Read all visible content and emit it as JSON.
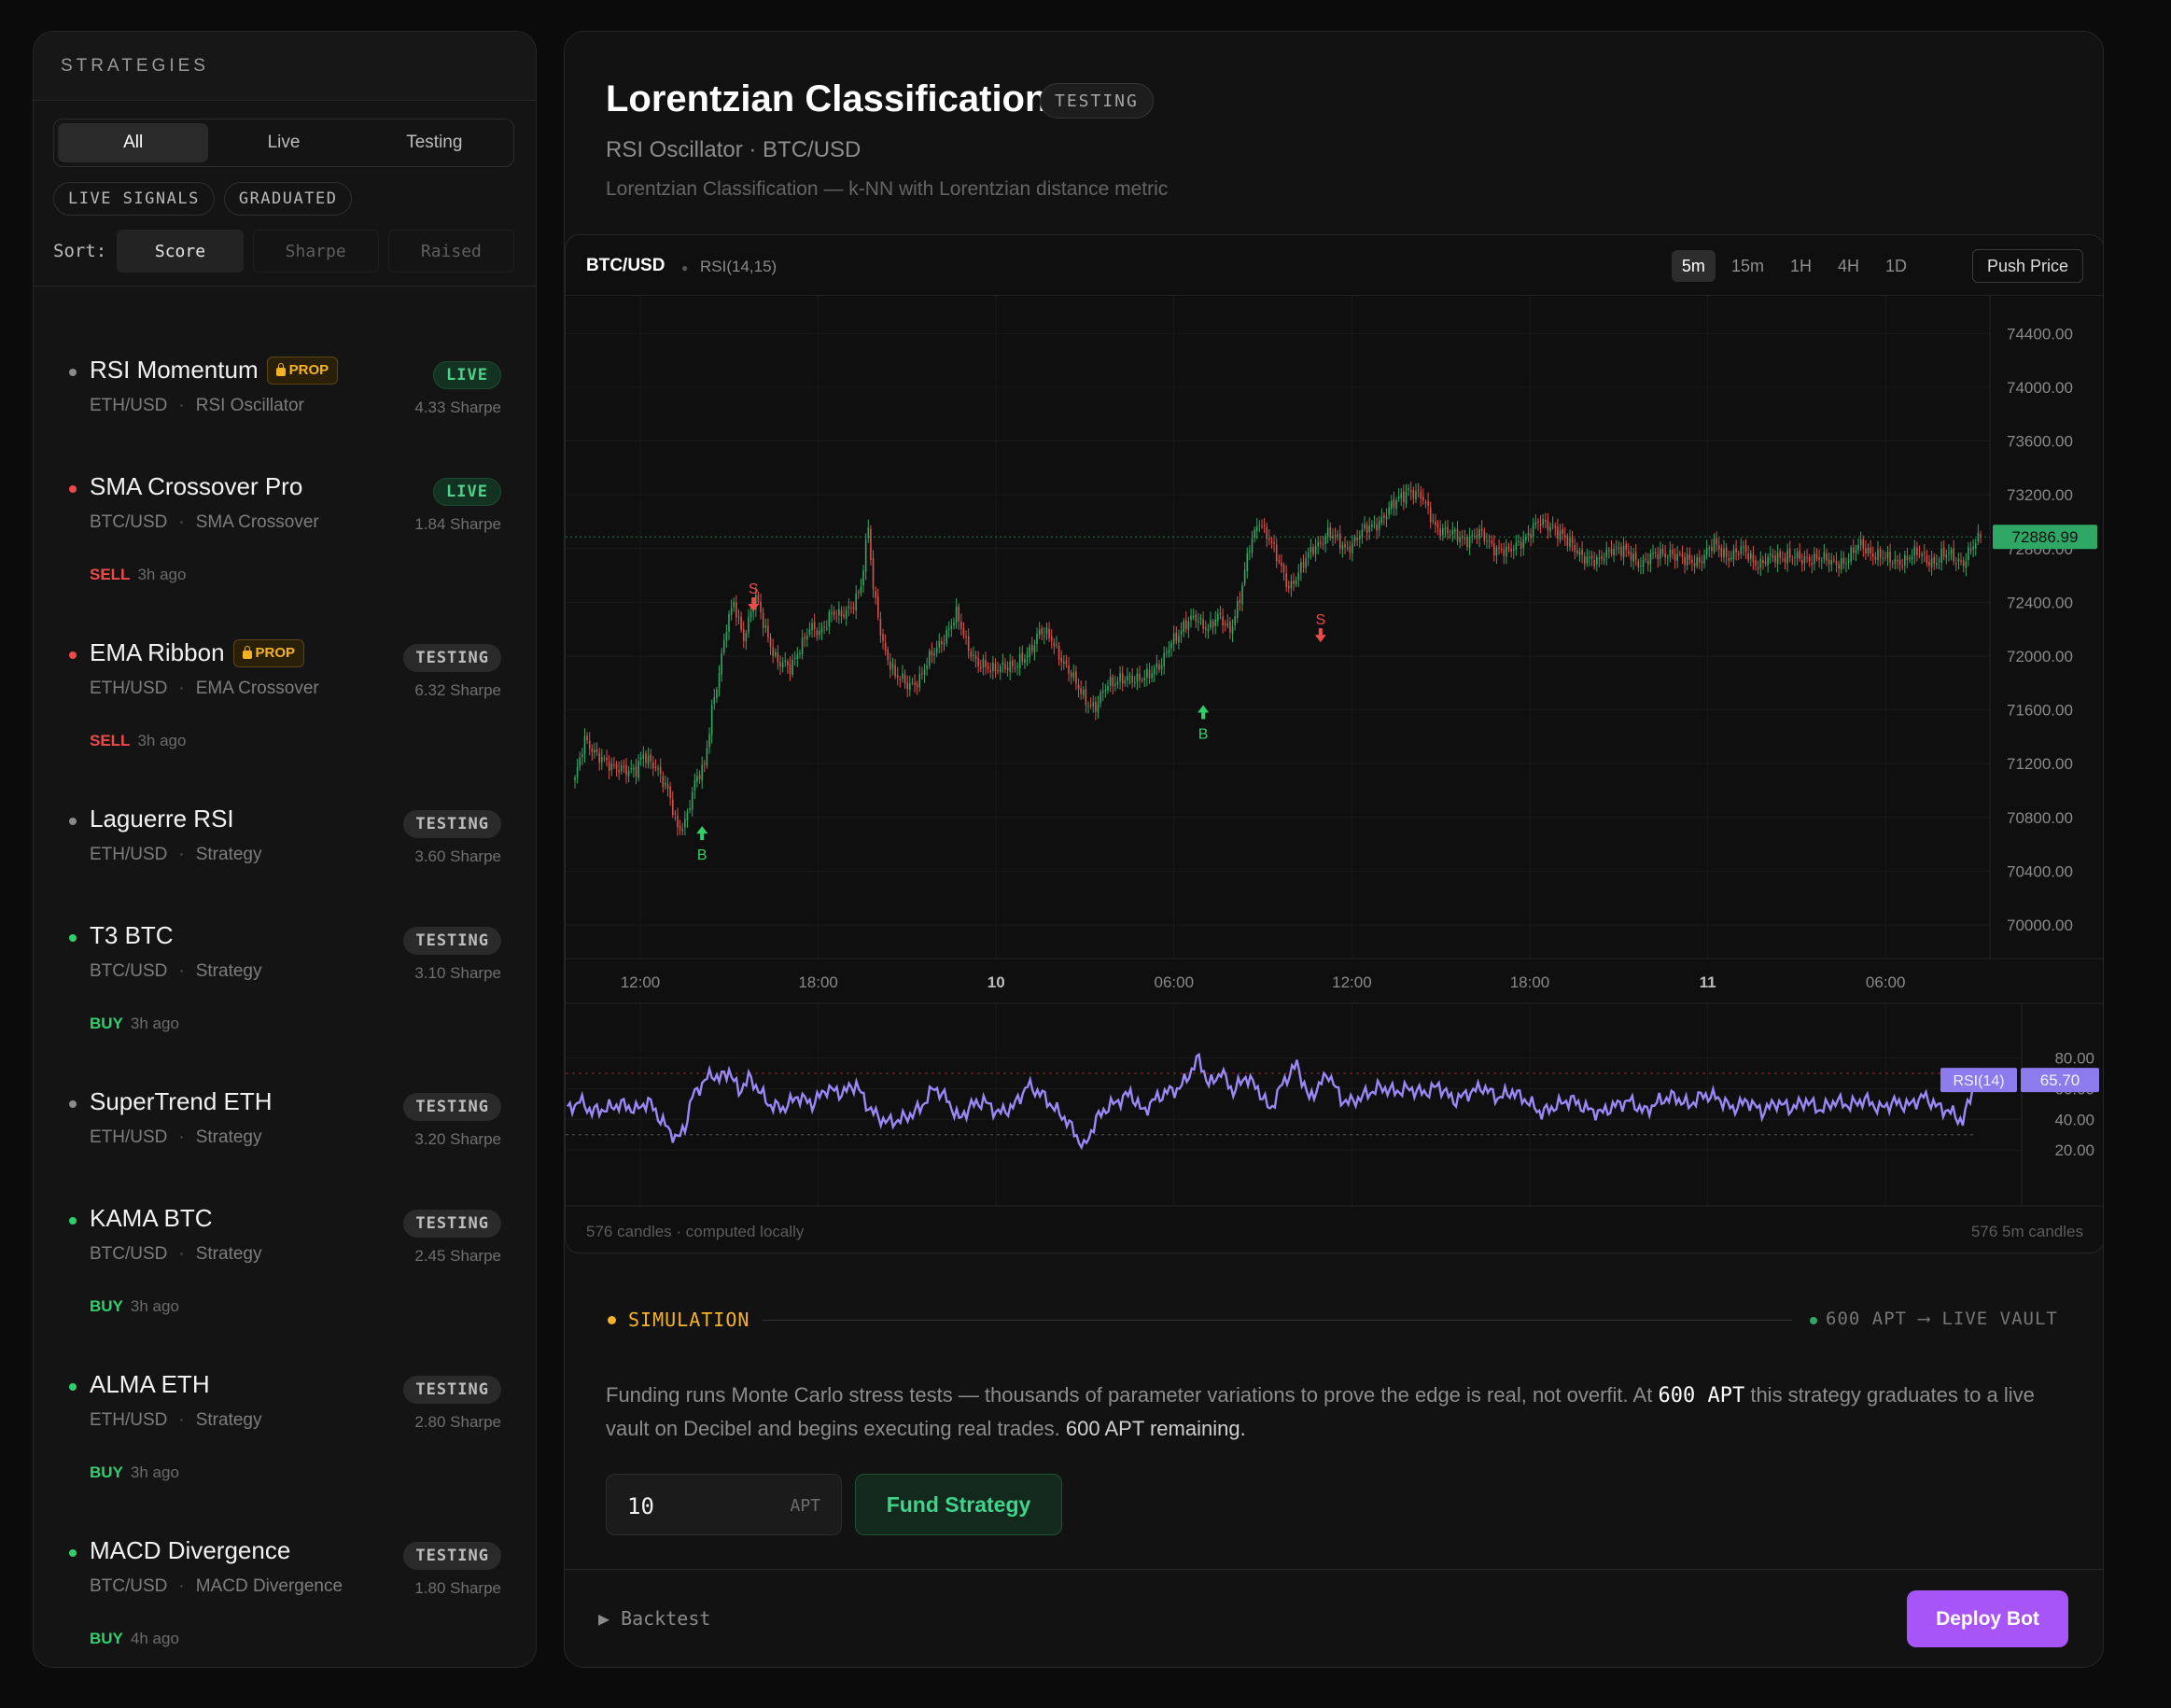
{
  "sidebar": {
    "header": "STRATEGIES",
    "tabs": [
      "All",
      "Live",
      "Testing"
    ],
    "chips": [
      "LIVE SIGNALS",
      "GRADUATED"
    ],
    "sort_label": "Sort:",
    "sort_options": [
      "Score",
      "Sharpe",
      "Raised"
    ],
    "strategies": [
      {
        "name": "RSI Momentum",
        "prop": "PROP",
        "pair": "ETH/USD",
        "indicator": "RSI Oscillator",
        "status": "LIVE",
        "sharpe": "4.33 Sharpe",
        "signal": "",
        "signal_time": "",
        "dot": "#8a8a8a"
      },
      {
        "name": "SMA Crossover Pro",
        "prop": "",
        "pair": "BTC/USD",
        "indicator": "SMA Crossover",
        "status": "LIVE",
        "sharpe": "1.84 Sharpe",
        "signal": "SELL",
        "signal_time": "3h ago",
        "dot": "#ef4a4a"
      },
      {
        "name": "EMA Ribbon",
        "prop": "PROP",
        "pair": "ETH/USD",
        "indicator": "EMA Crossover",
        "status": "TESTING",
        "sharpe": "6.32 Sharpe",
        "signal": "SELL",
        "signal_time": "3h ago",
        "dot": "#ef4a4a"
      },
      {
        "name": "Laguerre RSI",
        "prop": "",
        "pair": "ETH/USD",
        "indicator": "Strategy",
        "status": "TESTING",
        "sharpe": "3.60 Sharpe",
        "signal": "",
        "signal_time": "",
        "dot": "#8a8a8a"
      },
      {
        "name": "T3 BTC",
        "prop": "",
        "pair": "BTC/USD",
        "indicator": "Strategy",
        "status": "TESTING",
        "sharpe": "3.10 Sharpe",
        "signal": "BUY",
        "signal_time": "3h ago",
        "dot": "#2fd06b"
      },
      {
        "name": "SuperTrend ETH",
        "prop": "",
        "pair": "ETH/USD",
        "indicator": "Strategy",
        "status": "TESTING",
        "sharpe": "3.20 Sharpe",
        "signal": "",
        "signal_time": "",
        "dot": "#8a8a8a"
      },
      {
        "name": "KAMA BTC",
        "prop": "",
        "pair": "BTC/USD",
        "indicator": "Strategy",
        "status": "TESTING",
        "sharpe": "2.45 Sharpe",
        "signal": "BUY",
        "signal_time": "3h ago",
        "dot": "#2fd06b"
      },
      {
        "name": "ALMA ETH",
        "prop": "",
        "pair": "ETH/USD",
        "indicator": "Strategy",
        "status": "TESTING",
        "sharpe": "2.80 Sharpe",
        "signal": "BUY",
        "signal_time": "3h ago",
        "dot": "#2fd06b"
      },
      {
        "name": "MACD Divergence",
        "prop": "",
        "pair": "BTC/USD",
        "indicator": "MACD Divergence",
        "status": "TESTING",
        "sharpe": "1.80 Sharpe",
        "signal": "BUY",
        "signal_time": "4h ago",
        "dot": "#2fd06b"
      }
    ]
  },
  "main": {
    "title": "Lorentzian Classification",
    "badge": "TESTING",
    "subtitle": "RSI Oscillator · BTC/USD",
    "description": "Lorentzian Classification — k-NN with Lorentzian distance metric"
  },
  "chart": {
    "symbol": "BTC/USD",
    "indicator": "RSI(14,15)",
    "timeframes": [
      "5m",
      "15m",
      "1H",
      "4H",
      "1D"
    ],
    "active_timeframe": "5m",
    "push_price_label": "Push Price",
    "footer_left": "576 candles · computed locally",
    "footer_right": "576 5m candles",
    "last_price_label": "72886.99",
    "rsi_label": "RSI(14)",
    "rsi_value_label": "65.70"
  },
  "chart_data": {
    "type": "candlestick",
    "symbol": "BTC/USD",
    "interval": "5m",
    "candle_count": 576,
    "price_ticks": [
      "74400.00",
      "74000.00",
      "73600.00",
      "73200.00",
      "72800.00",
      "72400.00",
      "72000.00",
      "71600.00",
      "71200.00",
      "70800.00",
      "70400.00",
      "70000.00"
    ],
    "price_tick_values": [
      74400,
      74000,
      73600,
      73200,
      72800,
      72400,
      72000,
      71600,
      71200,
      70800,
      70400,
      70000
    ],
    "ylim": [
      69750,
      74680
    ],
    "time_ticks": [
      "12:00",
      "18:00",
      "10",
      "06:00",
      "12:00",
      "18:00",
      "11",
      "06:00"
    ],
    "bold_time_ticks": [
      "10",
      "11"
    ],
    "last_price": 72886.99,
    "close_path": [
      [
        0,
        71080
      ],
      [
        4,
        71360
      ],
      [
        10,
        71270
      ],
      [
        15,
        71150
      ],
      [
        20,
        71180
      ],
      [
        25,
        71140
      ],
      [
        28,
        71250
      ],
      [
        33,
        71200
      ],
      [
        38,
        70980
      ],
      [
        42,
        70720
      ],
      [
        45,
        70780
      ],
      [
        49,
        71040
      ],
      [
        53,
        71180
      ],
      [
        56,
        71620
      ],
      [
        59,
        71880
      ],
      [
        62,
        72200
      ],
      [
        65,
        72400
      ],
      [
        69,
        72150
      ],
      [
        74,
        72420
      ],
      [
        78,
        72200
      ],
      [
        83,
        71950
      ],
      [
        88,
        71900
      ],
      [
        92,
        72080
      ],
      [
        96,
        72200
      ],
      [
        100,
        72160
      ],
      [
        105,
        72340
      ],
      [
        109,
        72280
      ],
      [
        113,
        72360
      ],
      [
        117,
        72540
      ],
      [
        120,
        72950
      ],
      [
        122,
        72480
      ],
      [
        126,
        72100
      ],
      [
        131,
        71850
      ],
      [
        136,
        71780
      ],
      [
        141,
        71840
      ],
      [
        146,
        72000
      ],
      [
        151,
        72150
      ],
      [
        156,
        72300
      ],
      [
        160,
        72100
      ],
      [
        165,
        71950
      ],
      [
        170,
        71880
      ],
      [
        175,
        71950
      ],
      [
        180,
        71900
      ],
      [
        185,
        72020
      ],
      [
        190,
        72180
      ],
      [
        195,
        72120
      ],
      [
        200,
        71960
      ],
      [
        205,
        71780
      ],
      [
        209,
        71680
      ],
      [
        213,
        71620
      ],
      [
        218,
        71780
      ],
      [
        223,
        71850
      ],
      [
        229,
        71800
      ],
      [
        234,
        71880
      ],
      [
        240,
        71920
      ],
      [
        244,
        72120
      ],
      [
        249,
        72220
      ],
      [
        254,
        72280
      ],
      [
        259,
        72220
      ],
      [
        263,
        72280
      ],
      [
        268,
        72200
      ],
      [
        272,
        72440
      ],
      [
        276,
        72800
      ],
      [
        280,
        73020
      ],
      [
        284,
        72880
      ],
      [
        288,
        72680
      ],
      [
        292,
        72520
      ],
      [
        297,
        72650
      ],
      [
        302,
        72800
      ],
      [
        308,
        72920
      ],
      [
        315,
        72800
      ],
      [
        321,
        72900
      ],
      [
        327,
        72980
      ],
      [
        334,
        73100
      ],
      [
        341,
        73250
      ],
      [
        346,
        73180
      ],
      [
        352,
        72980
      ],
      [
        358,
        72900
      ],
      [
        364,
        72880
      ],
      [
        370,
        72900
      ],
      [
        376,
        72820
      ],
      [
        382,
        72760
      ],
      [
        388,
        72880
      ],
      [
        394,
        72980
      ],
      [
        400,
        72980
      ],
      [
        406,
        72840
      ],
      [
        412,
        72760
      ],
      [
        418,
        72680
      ],
      [
        424,
        72820
      ],
      [
        430,
        72760
      ],
      [
        436,
        72700
      ],
      [
        442,
        72740
      ],
      [
        448,
        72780
      ],
      [
        454,
        72700
      ],
      [
        460,
        72720
      ],
      [
        466,
        72820
      ],
      [
        472,
        72750
      ],
      [
        478,
        72780
      ],
      [
        484,
        72690
      ],
      [
        490,
        72720
      ],
      [
        496,
        72760
      ],
      [
        502,
        72700
      ],
      [
        508,
        72750
      ],
      [
        514,
        72680
      ],
      [
        520,
        72720
      ],
      [
        526,
        72820
      ],
      [
        532,
        72760
      ],
      [
        538,
        72700
      ],
      [
        544,
        72720
      ],
      [
        550,
        72760
      ],
      [
        556,
        72700
      ],
      [
        562,
        72760
      ],
      [
        568,
        72700
      ],
      [
        575,
        72887
      ]
    ],
    "signals": [
      {
        "label": "B",
        "type": "buy",
        "index": 52,
        "price": 70680
      },
      {
        "label": "S",
        "type": "sell",
        "index": 73,
        "price": 72340
      },
      {
        "label": "B",
        "type": "buy",
        "index": 257,
        "price": 71580
      },
      {
        "label": "S",
        "type": "sell",
        "index": 305,
        "price": 72110
      }
    ],
    "rsi": {
      "name": "RSI(14)",
      "ticks": [
        "80.00",
        "60.00",
        "40.00",
        "20.00"
      ],
      "tick_values": [
        80,
        60,
        40,
        20
      ],
      "ylim": [
        14,
        84
      ],
      "upper_band": 70,
      "lower_band": 30,
      "last_value": 65.7,
      "path": [
        [
          0,
          46
        ],
        [
          5,
          52
        ],
        [
          10,
          45
        ],
        [
          16,
          47
        ],
        [
          22,
          50
        ],
        [
          28,
          46
        ],
        [
          33,
          52
        ],
        [
          38,
          40
        ],
        [
          42,
          32
        ],
        [
          45,
          27
        ],
        [
          48,
          35
        ],
        [
          51,
          55
        ],
        [
          55,
          63
        ],
        [
          59,
          70
        ],
        [
          62,
          66
        ],
        [
          66,
          72
        ],
        [
          70,
          58
        ],
        [
          74,
          67
        ],
        [
          78,
          60
        ],
        [
          82,
          50
        ],
        [
          88,
          47
        ],
        [
          94,
          55
        ],
        [
          100,
          50
        ],
        [
          106,
          60
        ],
        [
          112,
          57
        ],
        [
          118,
          63
        ],
        [
          122,
          50
        ],
        [
          127,
          41
        ],
        [
          132,
          38
        ],
        [
          138,
          41
        ],
        [
          144,
          47
        ],
        [
          150,
          61
        ],
        [
          155,
          53
        ],
        [
          160,
          40
        ],
        [
          165,
          49
        ],
        [
          170,
          52
        ],
        [
          176,
          44
        ],
        [
          182,
          48
        ],
        [
          188,
          62
        ],
        [
          194,
          56
        ],
        [
          199,
          47
        ],
        [
          203,
          41
        ],
        [
          207,
          32
        ],
        [
          211,
          21
        ],
        [
          216,
          40
        ],
        [
          220,
          47
        ],
        [
          225,
          52
        ],
        [
          230,
          57
        ],
        [
          235,
          45
        ],
        [
          240,
          53
        ],
        [
          245,
          58
        ],
        [
          250,
          60
        ],
        [
          255,
          72
        ],
        [
          258,
          80
        ],
        [
          262,
          62
        ],
        [
          267,
          71
        ],
        [
          272,
          58
        ],
        [
          277,
          68
        ],
        [
          282,
          60
        ],
        [
          287,
          46
        ],
        [
          292,
          63
        ],
        [
          298,
          76
        ],
        [
          303,
          53
        ],
        [
          307,
          62
        ],
        [
          311,
          70
        ],
        [
          316,
          53
        ],
        [
          320,
          51
        ],
        [
          326,
          56
        ],
        [
          332,
          61
        ],
        [
          338,
          58
        ],
        [
          344,
          60
        ],
        [
          350,
          57
        ],
        [
          356,
          62
        ],
        [
          362,
          52
        ],
        [
          368,
          57
        ],
        [
          374,
          61
        ],
        [
          380,
          54
        ],
        [
          386,
          58
        ],
        [
          392,
          52
        ],
        [
          398,
          44
        ],
        [
          404,
          49
        ],
        [
          410,
          53
        ],
        [
          416,
          47
        ],
        [
          422,
          44
        ],
        [
          428,
          49
        ],
        [
          434,
          52
        ],
        [
          440,
          45
        ],
        [
          446,
          52
        ],
        [
          452,
          55
        ],
        [
          458,
          49
        ],
        [
          464,
          56
        ],
        [
          470,
          54
        ],
        [
          476,
          47
        ],
        [
          482,
          52
        ],
        [
          488,
          45
        ],
        [
          494,
          51
        ],
        [
          500,
          47
        ],
        [
          506,
          52
        ],
        [
          512,
          46
        ],
        [
          518,
          52
        ],
        [
          524,
          49
        ],
        [
          530,
          53
        ],
        [
          536,
          47
        ],
        [
          542,
          51
        ],
        [
          548,
          49
        ],
        [
          554,
          55
        ],
        [
          560,
          48
        ],
        [
          566,
          44
        ],
        [
          570,
          38
        ],
        [
          575,
          65.7
        ]
      ]
    }
  },
  "simulation": {
    "label": "SIMULATION",
    "target_amount": "600 APT",
    "arrow": "⟶",
    "target_label": "LIVE VAULT",
    "text_before": "Funding runs Monte Carlo stress tests — thousands of parameter variations to prove the edge is real, not overfit. At",
    "text_highlight": "600 APT",
    "text_after": "this strategy graduates to a live vault on Decibel and begins executing real trades.",
    "remaining": "600 APT remaining.",
    "amount_value": "10",
    "amount_unit": "APT",
    "fund_button": "Fund Strategy"
  },
  "footer": {
    "backtest_label": "Backtest",
    "deploy_button": "Deploy Bot"
  },
  "colors": {
    "accent_purple": "#a855f7",
    "rsi_line": "#9b87f5",
    "up_candle": "#2fa765",
    "down_candle": "#d9514b",
    "price_tag": "#2fa765",
    "sell": "#ef4a4a",
    "buy": "#2fd06b",
    "warning": "#f5b323"
  }
}
